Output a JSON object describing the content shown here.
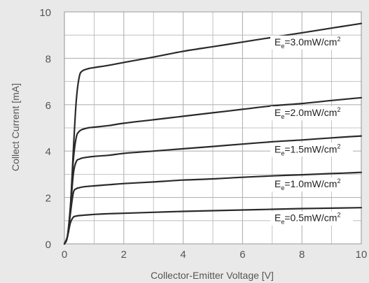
{
  "chart_data": {
    "type": "line",
    "xlabel": "Collector-Emitter Voltage [V]",
    "ylabel": "Collect Current [mA]",
    "xlim": [
      0,
      10
    ],
    "ylim": [
      0,
      10
    ],
    "x_ticks": [
      "0",
      "2",
      "4",
      "6",
      "8",
      "10"
    ],
    "y_ticks": [
      "0",
      "2",
      "4",
      "6",
      "8",
      "10"
    ],
    "grid": true,
    "series": [
      {
        "name": "Ee=3.0mW/cm2",
        "label_parts": {
          "base": "E",
          "sub": "e",
          "main": "=3.0mW/cm",
          "sup": "2"
        },
        "x": [
          0,
          0.1,
          0.2,
          0.3,
          0.4,
          0.5,
          0.6,
          0.8,
          1.0,
          1.5,
          2,
          3,
          4,
          5,
          6,
          7,
          8,
          9,
          10
        ],
        "y": [
          0,
          0.3,
          1.5,
          4.0,
          6.2,
          7.2,
          7.45,
          7.55,
          7.6,
          7.7,
          7.82,
          8.05,
          8.3,
          8.5,
          8.7,
          8.9,
          9.1,
          9.3,
          9.5
        ]
      },
      {
        "name": "Ee=2.0mW/cm2",
        "label_parts": {
          "base": "E",
          "sub": "e",
          "main": "=2.0mW/cm",
          "sup": "2"
        },
        "x": [
          0,
          0.1,
          0.2,
          0.3,
          0.4,
          0.5,
          0.6,
          0.8,
          1.0,
          1.5,
          2,
          3,
          4,
          5,
          6,
          7,
          8,
          9,
          10
        ],
        "y": [
          0,
          0.3,
          1.6,
          3.6,
          4.6,
          4.85,
          4.93,
          5.0,
          5.03,
          5.1,
          5.2,
          5.35,
          5.5,
          5.65,
          5.8,
          5.95,
          6.05,
          6.18,
          6.3
        ]
      },
      {
        "name": "Ee=1.5mW/cm2",
        "label_parts": {
          "base": "E",
          "sub": "e",
          "main": "=1.5mW/cm",
          "sup": "2"
        },
        "x": [
          0,
          0.1,
          0.2,
          0.3,
          0.4,
          0.5,
          0.6,
          0.8,
          1.0,
          1.5,
          2,
          3,
          4,
          5,
          6,
          7,
          8,
          9,
          10
        ],
        "y": [
          0,
          0.3,
          1.5,
          3.0,
          3.55,
          3.65,
          3.7,
          3.74,
          3.77,
          3.82,
          3.9,
          4.0,
          4.1,
          4.2,
          4.3,
          4.4,
          4.48,
          4.57,
          4.65
        ]
      },
      {
        "name": "Ee=1.0mW/cm2",
        "label_parts": {
          "base": "E",
          "sub": "e",
          "main": "=1.0mW/cm",
          "sup": "2"
        },
        "x": [
          0,
          0.1,
          0.2,
          0.3,
          0.4,
          0.5,
          0.6,
          0.8,
          1.0,
          1.5,
          2,
          3,
          4,
          5,
          6,
          7,
          8,
          9,
          10
        ],
        "y": [
          0,
          0.3,
          1.3,
          2.2,
          2.38,
          2.42,
          2.45,
          2.48,
          2.5,
          2.55,
          2.6,
          2.67,
          2.75,
          2.8,
          2.87,
          2.93,
          2.98,
          3.03,
          3.08
        ]
      },
      {
        "name": "Ee=0.5mW/cm2",
        "label_parts": {
          "base": "E",
          "sub": "e",
          "main": "=0.5mW/cm",
          "sup": "2"
        },
        "x": [
          0,
          0.1,
          0.2,
          0.3,
          0.4,
          0.5,
          0.6,
          0.8,
          1.0,
          1.5,
          2,
          3,
          4,
          5,
          6,
          7,
          8,
          9,
          10
        ],
        "y": [
          0,
          0.3,
          0.9,
          1.15,
          1.2,
          1.22,
          1.23,
          1.25,
          1.27,
          1.3,
          1.32,
          1.36,
          1.4,
          1.43,
          1.46,
          1.49,
          1.52,
          1.54,
          1.56
        ]
      }
    ],
    "colors": {
      "line": "#2a2a2a",
      "grid": "#b3b3b3",
      "plot_bg": "#ffffff",
      "page_bg": "#e9e9e9"
    }
  }
}
